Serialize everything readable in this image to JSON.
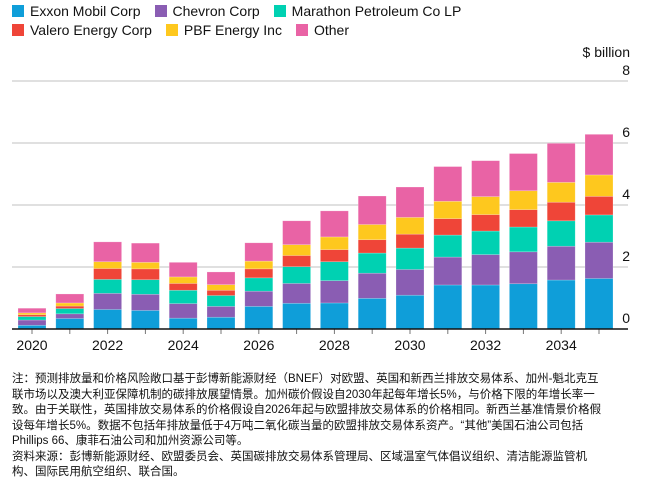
{
  "chart_data": {
    "type": "bar",
    "stacked": true,
    "categories": [
      "2020",
      "2021",
      "2022",
      "2023",
      "2024",
      "2025",
      "2026",
      "2027",
      "2028",
      "2029",
      "2030",
      "2031",
      "2032",
      "2033",
      "2034",
      "2035"
    ],
    "xtick_labels": [
      "2020",
      "2022",
      "2024",
      "2026",
      "2028",
      "2030",
      "2032",
      "2034"
    ],
    "unit_label": "$ billion",
    "ylim": [
      0,
      8
    ],
    "yticks": [
      0,
      2,
      4,
      6,
      8
    ],
    "grid": true,
    "legend_position": "top-left",
    "series": [
      {
        "name": "Exxon Mobil Corp",
        "color": "#0f9ed9",
        "values": [
          0.12,
          0.34,
          0.63,
          0.6,
          0.35,
          0.38,
          0.73,
          0.83,
          0.84,
          0.99,
          1.09,
          1.42,
          1.42,
          1.46,
          1.58,
          1.63
        ]
      },
      {
        "name": "Chevron Corp",
        "color": "#8a5db3",
        "values": [
          0.17,
          0.15,
          0.52,
          0.52,
          0.47,
          0.35,
          0.49,
          0.64,
          0.72,
          0.81,
          0.83,
          0.9,
          0.98,
          1.03,
          1.09,
          1.17
        ]
      },
      {
        "name": "Marathon Petroleum Co LP",
        "color": "#00d1b2",
        "values": [
          0.11,
          0.17,
          0.45,
          0.47,
          0.43,
          0.35,
          0.43,
          0.54,
          0.61,
          0.65,
          0.69,
          0.71,
          0.76,
          0.8,
          0.82,
          0.88
        ]
      },
      {
        "name": "Valero Energy Corp",
        "color": "#ef4538",
        "values": [
          0.06,
          0.08,
          0.35,
          0.35,
          0.22,
          0.17,
          0.29,
          0.36,
          0.39,
          0.43,
          0.45,
          0.53,
          0.53,
          0.56,
          0.6,
          0.6
        ]
      },
      {
        "name": "PBF Energy Inc",
        "color": "#fec81e",
        "values": [
          0.06,
          0.1,
          0.22,
          0.21,
          0.21,
          0.18,
          0.25,
          0.35,
          0.41,
          0.49,
          0.54,
          0.56,
          0.58,
          0.61,
          0.64,
          0.69
        ]
      },
      {
        "name": "Other",
        "color": "#e963a5",
        "values": [
          0.15,
          0.29,
          0.64,
          0.62,
          0.47,
          0.41,
          0.59,
          0.77,
          0.84,
          0.92,
          0.98,
          1.12,
          1.16,
          1.2,
          1.26,
          1.31
        ]
      }
    ]
  },
  "notes": [
    "注：预测排放量和价格风险敞口基于彭博新能源财经（BNEF）对欧盟、英国和新西兰排放交易体系、加州-魁北克互",
    "联市场以及澳大利亚保障机制的碳排放展望情景。加州碳价假设自2030年起每年增长5%，与价格下限的年增长率一",
    "致。由于关联性，英国排放交易体系的价格假设自2026年起与欧盟排放交易体系的价格相同。新西兰基准情景价格假",
    "设每年增长5%。数据不包括年排放量低于4万吨二氧化碳当量的欧盟排放交易体系资产。“其他”美国石油公司包括",
    "Phillips 66、康菲石油公司和加州资源公司等。",
    "资料来源：彭博新能源财经、欧盟委员会、英国碳排放交易体系管理局、区域温室气体倡议组织、清洁能源监管机",
    "构、国际民用航空组织、联合国。"
  ]
}
